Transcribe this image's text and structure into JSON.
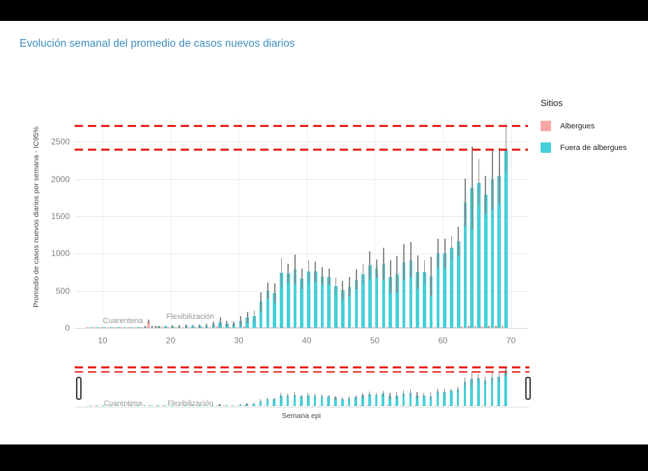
{
  "page": {
    "title": "Evolución semanal del promedio de casos nuevos diarios"
  },
  "legend": {
    "title": "Sitios",
    "items": [
      {
        "label": "Albergues",
        "color": "#f7a8a5"
      },
      {
        "label": "Fuera de albergues",
        "color": "#45d0d8"
      }
    ]
  },
  "axes": {
    "y_label": "Promedio de casos nuevos diarios por semana - IC95%",
    "x_label": "Semana epi"
  },
  "chart_data": {
    "type": "bar",
    "title": "Evolución semanal del promedio de casos nuevos diarios",
    "xlabel": "Semana epi",
    "ylabel": "Promedio de casos nuevos diarios por semana - IC95%",
    "x": [
      8,
      9,
      10,
      11,
      12,
      13,
      14,
      15,
      16,
      17,
      18,
      19,
      20,
      21,
      22,
      23,
      24,
      25,
      26,
      27,
      28,
      29,
      30,
      31,
      32,
      33,
      34,
      35,
      36,
      37,
      38,
      39,
      40,
      41,
      42,
      43,
      44,
      45,
      46,
      47,
      48,
      49,
      50,
      51,
      52,
      53,
      54,
      55,
      56,
      57,
      58,
      59,
      60,
      61,
      62,
      63,
      64,
      65,
      66,
      67,
      68,
      69
    ],
    "series": [
      {
        "name": "Albergues",
        "color": "#f7a8a5",
        "values": [
          1,
          1,
          2,
          2,
          2,
          3,
          3,
          4,
          6,
          88,
          20,
          16,
          14,
          12,
          14,
          12,
          10,
          12,
          14,
          16,
          12,
          10,
          14,
          16,
          12,
          10,
          12,
          10,
          12,
          10,
          12,
          10,
          12,
          10,
          10,
          10,
          8,
          8,
          8,
          10,
          10,
          12,
          10,
          12,
          10,
          10,
          12,
          12,
          10,
          10,
          10,
          12,
          12,
          12,
          14,
          16,
          18,
          18,
          16,
          18,
          18,
          20
        ],
        "ci_upper": [
          3,
          3,
          5,
          5,
          5,
          6,
          6,
          8,
          10,
          115,
          32,
          26,
          24,
          20,
          24,
          20,
          18,
          20,
          24,
          26,
          20,
          18,
          24,
          26,
          20,
          18,
          20,
          18,
          20,
          18,
          20,
          18,
          20,
          18,
          18,
          18,
          15,
          15,
          15,
          18,
          18,
          20,
          18,
          20,
          18,
          18,
          20,
          20,
          18,
          18,
          18,
          20,
          20,
          20,
          24,
          26,
          30,
          30,
          26,
          30,
          30,
          34
        ]
      },
      {
        "name": "Fuera de albergues",
        "color": "#45d0d8",
        "values": [
          2,
          3,
          4,
          5,
          6,
          8,
          9,
          10,
          12,
          14,
          16,
          18,
          22,
          20,
          24,
          26,
          24,
          30,
          45,
          78,
          56,
          52,
          95,
          140,
          156,
          353,
          500,
          469,
          741,
          734,
          788,
          663,
          756,
          756,
          694,
          688,
          563,
          506,
          553,
          650,
          725,
          844,
          797,
          859,
          688,
          725,
          881,
          913,
          750,
          750,
          694,
          1006,
          1000,
          1078,
          1163,
          1688,
          1881,
          1953,
          1788,
          2000,
          2047,
          2400
        ],
        "ci_upper": [
          6,
          8,
          10,
          12,
          14,
          16,
          18,
          20,
          24,
          28,
          30,
          34,
          40,
          38,
          44,
          48,
          46,
          55,
          80,
          140,
          90,
          85,
          160,
          219,
          234,
          480,
          609,
          600,
          938,
          859,
          984,
          797,
          906,
          891,
          813,
          797,
          672,
          625,
          688,
          788,
          859,
          1031,
          922,
          1078,
          906,
          969,
          1125,
          1150,
          975,
          913,
          953,
          1200,
          1200,
          1234,
          1360,
          2006,
          2438,
          2266,
          2047,
          2406,
          2422,
          2720
        ]
      }
    ],
    "reference_lines": [
      {
        "y": 2400,
        "color": "#e8241d",
        "style": "dashed"
      },
      {
        "y": 2720,
        "color": "#e8241d",
        "style": "dashed"
      }
    ],
    "annotations": [
      {
        "text": "Cuarentena",
        "week": 13,
        "value": 95
      },
      {
        "text": "Flexibilización",
        "week": 22.9,
        "value": 150
      }
    ],
    "x_ticks": [
      10,
      20,
      30,
      40,
      50,
      60,
      70
    ],
    "y_ticks": [
      0,
      500,
      1000,
      1500,
      2000,
      2500
    ],
    "xlim": [
      5.9,
      72.5
    ],
    "ylim": [
      0,
      2830
    ],
    "grid": "horizontal",
    "legend_position": "right",
    "rangeslider": true
  }
}
